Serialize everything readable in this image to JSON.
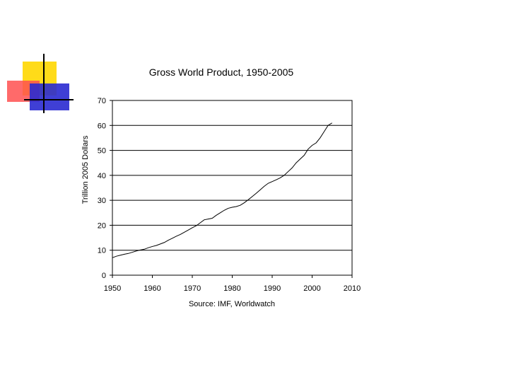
{
  "colors": {
    "logo_yellow": "#ffd700",
    "logo_red": "#ff4040",
    "logo_blue": "#2020cc",
    "grid": "#000000",
    "line": "#000000"
  },
  "chart_data": {
    "type": "line",
    "title": "Gross World Product, 1950-2005",
    "ylabel": "Trillion 2005 Dollars",
    "source": "Source: IMF, Worldwatch",
    "xlim": [
      1950,
      2010
    ],
    "ylim": [
      0,
      70
    ],
    "xticks": [
      "1950",
      "1960",
      "1970",
      "1980",
      "1990",
      "2000",
      "2010"
    ],
    "yticks": [
      "0",
      "10",
      "20",
      "30",
      "40",
      "50",
      "60",
      "70"
    ],
    "grid": "horizontal",
    "series": [
      {
        "x": [
          1950,
          1951,
          1952,
          1953,
          1954,
          1955,
          1956,
          1957,
          1958,
          1959,
          1960,
          1961,
          1962,
          1963,
          1964,
          1965,
          1966,
          1967,
          1968,
          1969,
          1970,
          1971,
          1972,
          1973,
          1974,
          1975,
          1976,
          1977,
          1978,
          1979,
          1980,
          1981,
          1982,
          1983,
          1984,
          1985,
          1986,
          1987,
          1988,
          1989,
          1990,
          1991,
          1992,
          1993,
          1994,
          1995,
          1996,
          1997,
          1998,
          1999,
          2000,
          2001,
          2002,
          2003,
          2004,
          2005
        ],
        "y": [
          7.0,
          7.6,
          8.0,
          8.4,
          8.7,
          9.2,
          9.7,
          10.1,
          10.4,
          11.0,
          11.5,
          11.9,
          12.5,
          13.1,
          14.0,
          14.8,
          15.6,
          16.3,
          17.2,
          18.1,
          19.0,
          19.8,
          21.0,
          22.2,
          22.5,
          22.8,
          24.0,
          25.0,
          26.0,
          26.8,
          27.2,
          27.5,
          28.0,
          29.0,
          30.2,
          31.5,
          32.8,
          34.2,
          35.6,
          36.8,
          37.5,
          38.2,
          39.0,
          40.0,
          41.5,
          43.0,
          45.0,
          46.5,
          48.0,
          50.5,
          52.0,
          53.0,
          55.0,
          57.5,
          60.0,
          61.0
        ]
      }
    ]
  }
}
